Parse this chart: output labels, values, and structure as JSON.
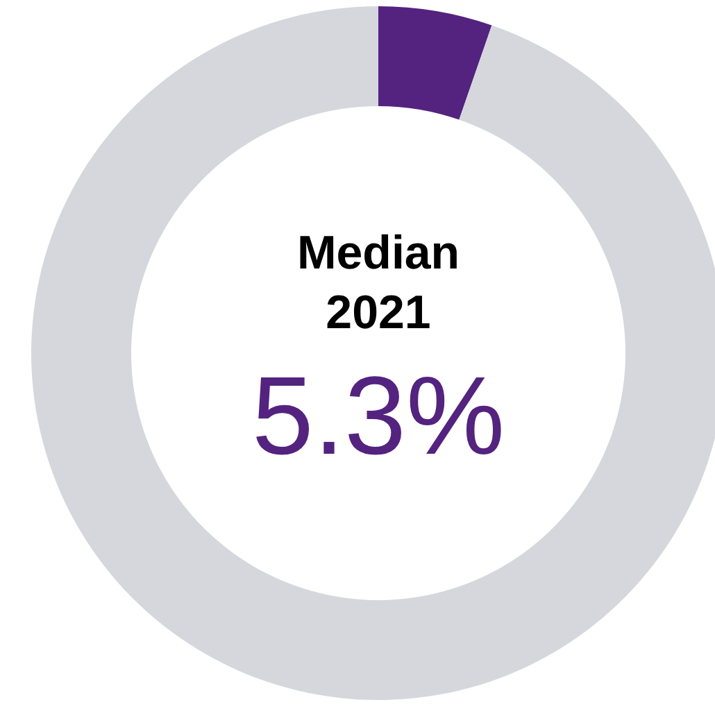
{
  "chart_data": {
    "type": "donut",
    "title": "Median 2021",
    "categories": [
      null,
      null
    ],
    "values": [
      5.3,
      94.7
    ],
    "colors": [
      "#53237f",
      "#d5d7dc"
    ],
    "annotations": [
      "5.3%"
    ]
  }
}
